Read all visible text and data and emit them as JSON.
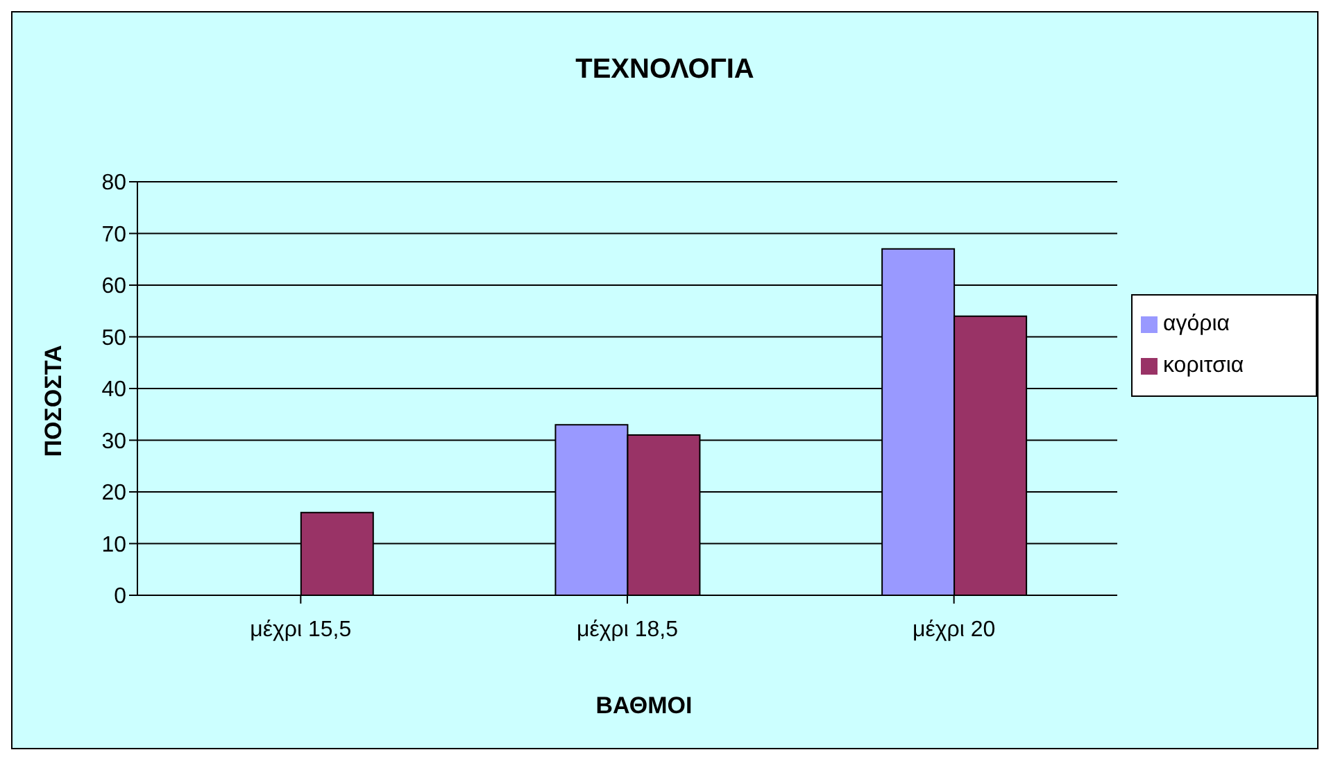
{
  "chart_data": {
    "type": "bar",
    "title": "ΤΕΧΝΟΛΟΓΙΑ",
    "xlabel": "ΒΑΘΜΟΙ",
    "ylabel": "ΠΟΣΟΣΤΑ",
    "categories": [
      "μέχρι 15,5",
      "μέχρι 18,5",
      "μέχρι 20"
    ],
    "series": [
      {
        "name": "αγόρια",
        "color": "#9999ff",
        "values": [
          0,
          33,
          67
        ]
      },
      {
        "name": "κοριτσια",
        "color": "#993366",
        "values": [
          16,
          31,
          54
        ]
      }
    ],
    "ylim": [
      0,
      80
    ],
    "yticks": [
      0,
      10,
      20,
      30,
      40,
      50,
      60,
      70,
      80
    ],
    "grid": "y",
    "legend": "right"
  }
}
